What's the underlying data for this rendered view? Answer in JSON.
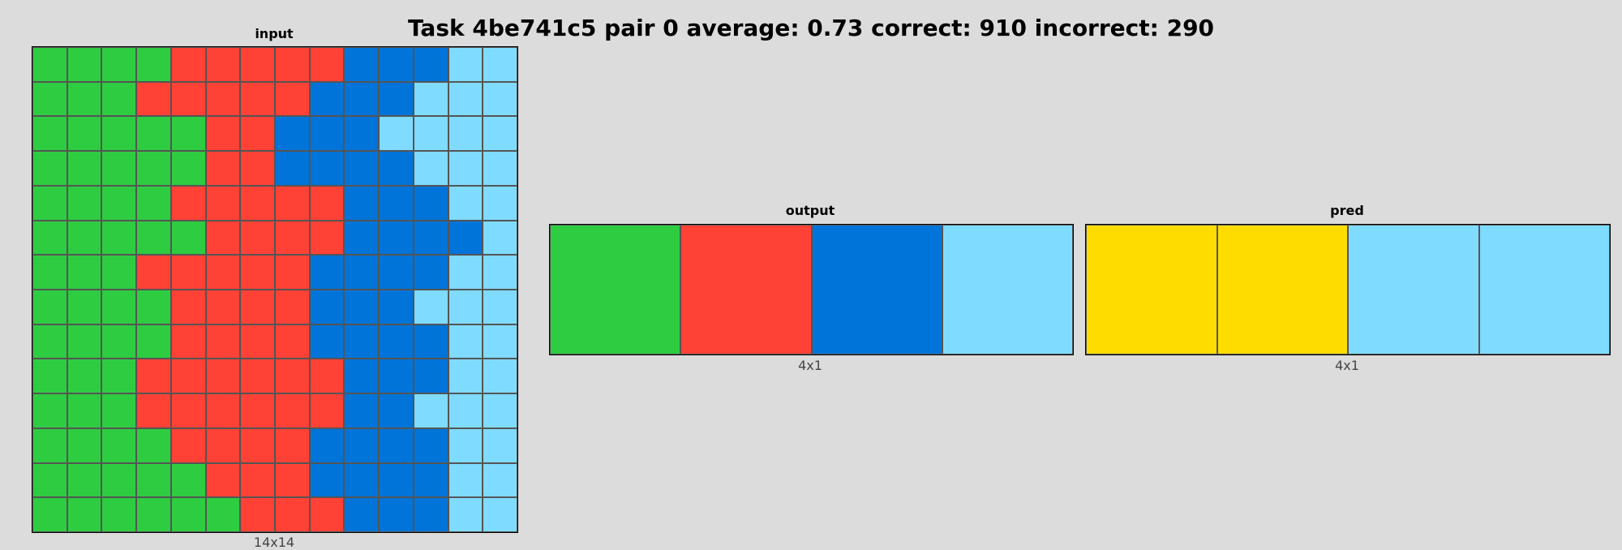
{
  "title": "Task 4be741c5 pair 0 average: 0.73 correct: 910 incorrect: 290",
  "palette": {
    "green": "#2ECC40",
    "red": "#FF4136",
    "blue": "#0074D9",
    "lightblue": "#7FDBFF",
    "yellow": "#FFDC00"
  },
  "panels": [
    {
      "label": "input",
      "dims": "14x14",
      "rows": [
        [
          "green",
          "green",
          "green",
          "green",
          "red",
          "red",
          "red",
          "red",
          "red",
          "blue",
          "blue",
          "blue",
          "lightblue",
          "lightblue"
        ],
        [
          "green",
          "green",
          "green",
          "red",
          "red",
          "red",
          "red",
          "red",
          "blue",
          "blue",
          "blue",
          "lightblue",
          "lightblue",
          "lightblue"
        ],
        [
          "green",
          "green",
          "green",
          "green",
          "green",
          "red",
          "red",
          "blue",
          "blue",
          "blue",
          "lightblue",
          "lightblue",
          "lightblue",
          "lightblue"
        ],
        [
          "green",
          "green",
          "green",
          "green",
          "green",
          "red",
          "red",
          "blue",
          "blue",
          "blue",
          "blue",
          "lightblue",
          "lightblue",
          "lightblue"
        ],
        [
          "green",
          "green",
          "green",
          "green",
          "red",
          "red",
          "red",
          "red",
          "red",
          "blue",
          "blue",
          "blue",
          "lightblue",
          "lightblue"
        ],
        [
          "green",
          "green",
          "green",
          "green",
          "green",
          "red",
          "red",
          "red",
          "red",
          "blue",
          "blue",
          "blue",
          "blue",
          "lightblue"
        ],
        [
          "green",
          "green",
          "green",
          "red",
          "red",
          "red",
          "red",
          "red",
          "blue",
          "blue",
          "blue",
          "blue",
          "lightblue",
          "lightblue"
        ],
        [
          "green",
          "green",
          "green",
          "green",
          "red",
          "red",
          "red",
          "red",
          "blue",
          "blue",
          "blue",
          "lightblue",
          "lightblue",
          "lightblue"
        ],
        [
          "green",
          "green",
          "green",
          "green",
          "red",
          "red",
          "red",
          "red",
          "blue",
          "blue",
          "blue",
          "blue",
          "lightblue",
          "lightblue"
        ],
        [
          "green",
          "green",
          "green",
          "red",
          "red",
          "red",
          "red",
          "red",
          "red",
          "blue",
          "blue",
          "blue",
          "lightblue",
          "lightblue"
        ],
        [
          "green",
          "green",
          "green",
          "red",
          "red",
          "red",
          "red",
          "red",
          "red",
          "blue",
          "blue",
          "lightblue",
          "lightblue",
          "lightblue"
        ],
        [
          "green",
          "green",
          "green",
          "green",
          "red",
          "red",
          "red",
          "red",
          "blue",
          "blue",
          "blue",
          "blue",
          "lightblue",
          "lightblue"
        ],
        [
          "green",
          "green",
          "green",
          "green",
          "green",
          "red",
          "red",
          "red",
          "blue",
          "blue",
          "blue",
          "blue",
          "lightblue",
          "lightblue"
        ],
        [
          "green",
          "green",
          "green",
          "green",
          "green",
          "green",
          "red",
          "red",
          "red",
          "blue",
          "blue",
          "blue",
          "lightblue",
          "lightblue"
        ]
      ]
    },
    {
      "label": "output",
      "dims": "4x1",
      "rows": [
        [
          "green",
          "red",
          "blue",
          "lightblue"
        ]
      ]
    },
    {
      "label": "pred",
      "dims": "4x1",
      "rows": [
        [
          "yellow",
          "yellow",
          "lightblue",
          "lightblue"
        ]
      ]
    }
  ]
}
